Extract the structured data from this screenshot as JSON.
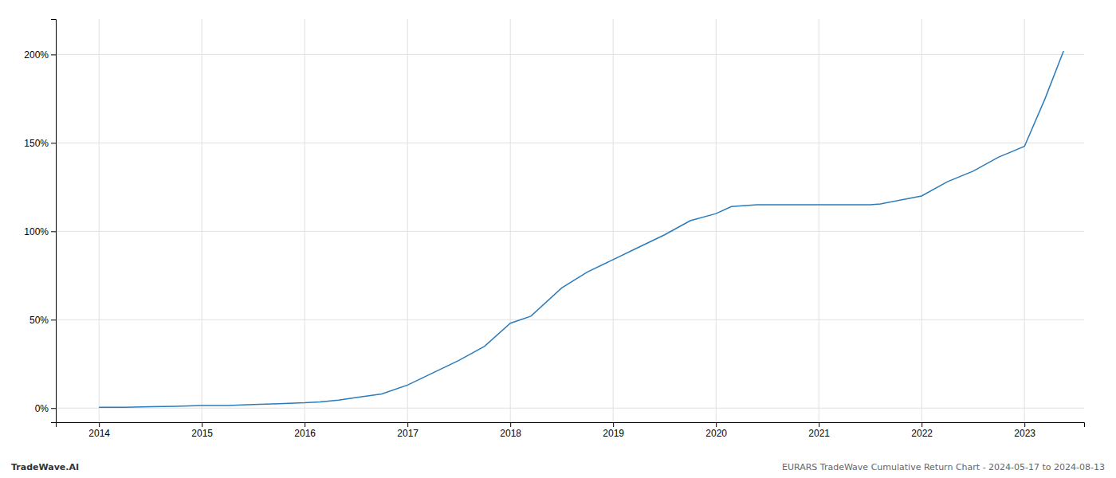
{
  "chart_data": {
    "type": "line",
    "x": [
      2014.0,
      2014.25,
      2014.5,
      2014.75,
      2015.0,
      2015.25,
      2015.5,
      2015.75,
      2016.0,
      2016.15,
      2016.33,
      2016.5,
      2016.75,
      2017.0,
      2017.25,
      2017.5,
      2017.75,
      2018.0,
      2018.2,
      2018.5,
      2018.75,
      2019.0,
      2019.25,
      2019.5,
      2019.75,
      2020.0,
      2020.15,
      2020.4,
      2020.6,
      2020.75,
      2021.0,
      2021.25,
      2021.5,
      2021.6,
      2022.0,
      2022.25,
      2022.5,
      2022.75,
      2023.0,
      2023.2,
      2023.38
    ],
    "values": [
      0.5,
      0.5,
      0.8,
      1.0,
      1.5,
      1.5,
      2.0,
      2.5,
      3.0,
      3.5,
      4.5,
      6.0,
      8.0,
      13.0,
      20.0,
      27.0,
      35.0,
      48.0,
      52.0,
      68.0,
      77.0,
      84.0,
      91.0,
      98.0,
      106.0,
      110.0,
      114.0,
      115.0,
      115.0,
      115.0,
      115.0,
      115.0,
      115.0,
      115.5,
      120.0,
      128.0,
      134.0,
      142.0,
      148.0,
      175.0,
      202.0
    ],
    "color": "#2b7bba",
    "xlim": [
      2013.58,
      2023.58
    ],
    "ylim": [
      -8,
      220
    ],
    "xticks": [
      2014,
      2015,
      2016,
      2017,
      2018,
      2019,
      2020,
      2021,
      2022,
      2023
    ],
    "yticks": [
      {
        "value": 0,
        "label": "0%"
      },
      {
        "value": 50,
        "label": "50%"
      },
      {
        "value": 100,
        "label": "100%"
      },
      {
        "value": 150,
        "label": "150%"
      },
      {
        "value": 200,
        "label": "200%"
      }
    ],
    "grid": true,
    "annotations": [
      "TradeWave.AI",
      "EURARS TradeWave Cumulative Return Chart - 2024-05-17 to 2024-08-13"
    ]
  }
}
